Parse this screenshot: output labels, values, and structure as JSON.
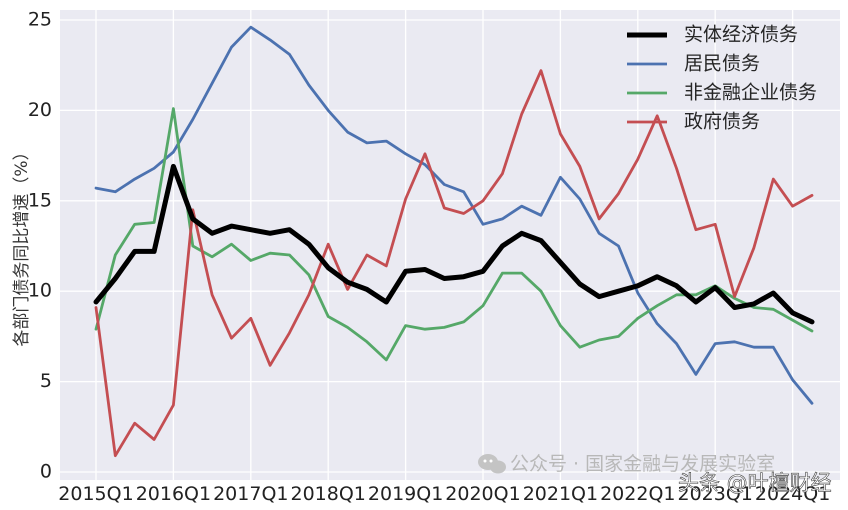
{
  "chart_data": {
    "type": "line",
    "ylabel": "各部门债务同比增速（%）",
    "ylim": [
      0,
      26
    ],
    "yticks": [
      0,
      5,
      10,
      15,
      20,
      25
    ],
    "grid": true,
    "legend_position": "top-right",
    "x": [
      "2015Q1",
      "2015Q2",
      "2015Q3",
      "2015Q4",
      "2016Q1",
      "2016Q2",
      "2016Q3",
      "2016Q4",
      "2017Q1",
      "2017Q2",
      "2017Q3",
      "2017Q4",
      "2018Q1",
      "2018Q2",
      "2018Q3",
      "2018Q4",
      "2019Q1",
      "2019Q2",
      "2019Q3",
      "2019Q4",
      "2020Q1",
      "2020Q2",
      "2020Q3",
      "2020Q4",
      "2021Q1",
      "2021Q2",
      "2021Q3",
      "2021Q4",
      "2022Q1",
      "2022Q2",
      "2022Q3",
      "2022Q4",
      "2023Q1",
      "2023Q2",
      "2023Q3",
      "2023Q4",
      "2024Q1",
      "2024Q2",
      "2024Q3"
    ],
    "xtick_labels": [
      "2015Q1",
      "2016Q1",
      "2017Q1",
      "2018Q1",
      "2019Q1",
      "2020Q1",
      "2021Q1",
      "2022Q1",
      "2023Q1",
      "2024Q1"
    ],
    "series": [
      {
        "name": "实体经济债务",
        "color": "#000000",
        "values": [
          9.4,
          10.7,
          12.2,
          12.2,
          16.9,
          14.0,
          13.2,
          13.6,
          13.4,
          13.2,
          13.4,
          12.6,
          11.3,
          10.5,
          10.1,
          9.4,
          11.1,
          11.2,
          10.7,
          10.8,
          11.1,
          12.5,
          13.2,
          12.8,
          11.6,
          10.4,
          9.7,
          10.0,
          10.3,
          10.8,
          10.3,
          9.4,
          10.2,
          9.1,
          9.3,
          9.9,
          8.8,
          8.3,
          null
        ]
      },
      {
        "name": "居民债务",
        "color": "#4c72b0",
        "values": [
          15.7,
          15.5,
          16.2,
          16.8,
          17.7,
          19.5,
          21.5,
          23.5,
          24.6,
          23.9,
          23.1,
          21.4,
          20.0,
          18.8,
          18.2,
          18.3,
          17.6,
          17.0,
          15.9,
          15.5,
          13.7,
          14.0,
          14.7,
          14.2,
          16.3,
          15.1,
          13.2,
          12.5,
          9.9,
          8.2,
          7.1,
          5.4,
          7.1,
          7.2,
          6.9,
          6.9,
          5.1,
          3.8,
          null
        ]
      },
      {
        "name": "非金融企业债务",
        "color": "#55a868",
        "values": [
          7.9,
          12.0,
          13.7,
          13.8,
          20.1,
          12.5,
          11.9,
          12.6,
          11.7,
          12.1,
          12.0,
          10.9,
          8.6,
          8.0,
          7.2,
          6.2,
          8.1,
          7.9,
          8.0,
          8.3,
          9.2,
          11.0,
          11.0,
          10.0,
          8.1,
          6.9,
          7.3,
          7.5,
          8.5,
          9.2,
          9.8,
          9.8,
          10.3,
          9.6,
          9.1,
          9.0,
          8.4,
          7.8,
          null
        ]
      },
      {
        "name": "政府债务",
        "color": "#c44e52",
        "values": [
          9.1,
          0.9,
          2.7,
          1.8,
          3.7,
          14.5,
          9.8,
          7.4,
          8.5,
          5.9,
          7.7,
          9.8,
          12.6,
          10.1,
          12.0,
          11.4,
          15.1,
          17.6,
          14.6,
          14.3,
          15.0,
          16.5,
          19.8,
          22.2,
          18.7,
          16.9,
          14.0,
          15.4,
          17.3,
          19.7,
          16.8,
          13.4,
          13.7,
          9.7,
          12.4,
          16.2,
          14.7,
          15.3,
          null
        ]
      }
    ],
    "watermarks": [
      "公众号 · 国家金融与发展实验室",
      "头条 @叶檀财经"
    ]
  }
}
